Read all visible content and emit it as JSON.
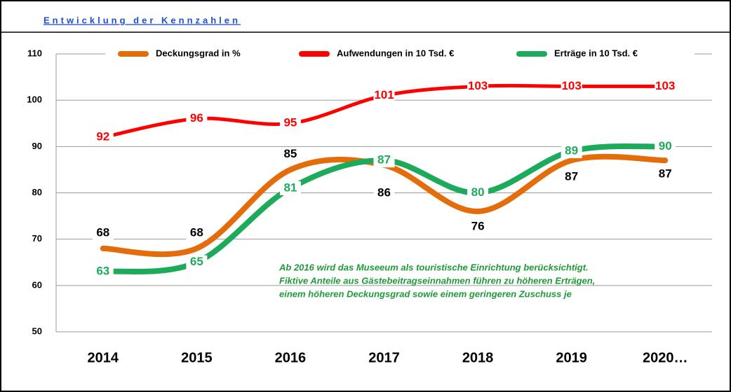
{
  "chart_data": {
    "type": "line",
    "title": "Entwicklung der Kennzahlen",
    "categories": [
      "2014",
      "2015",
      "2016",
      "2017",
      "2018",
      "2019",
      "2020…"
    ],
    "series": [
      {
        "name": "Deckungsgrad in %",
        "color": "#e46c0a",
        "values": [
          68,
          68,
          85,
          86,
          76,
          87,
          87
        ]
      },
      {
        "name": "Aufwendungen in 10 Tsd. €",
        "color": "#ff0000",
        "values": [
          92,
          96,
          95,
          101,
          103,
          103,
          103
        ]
      },
      {
        "name": "Erträge in 10 Tsd. €",
        "color": "#1daa5a",
        "values": [
          63,
          65,
          81,
          87,
          80,
          89,
          90
        ]
      }
    ],
    "ylim": [
      50,
      110
    ],
    "yticks": [
      50,
      60,
      70,
      80,
      90,
      100,
      110
    ],
    "grid": true,
    "annotation": [
      "Ab 2016  wird das Museeum als touristische Einrichtung berücksichtigt.",
      "Fiktive Anteile aus  Gästebeitragseinnahmen führen zu höheren Erträgen,",
      "einem höheren Deckungsgrad sowie einem geringeren Zuschuss je"
    ]
  }
}
